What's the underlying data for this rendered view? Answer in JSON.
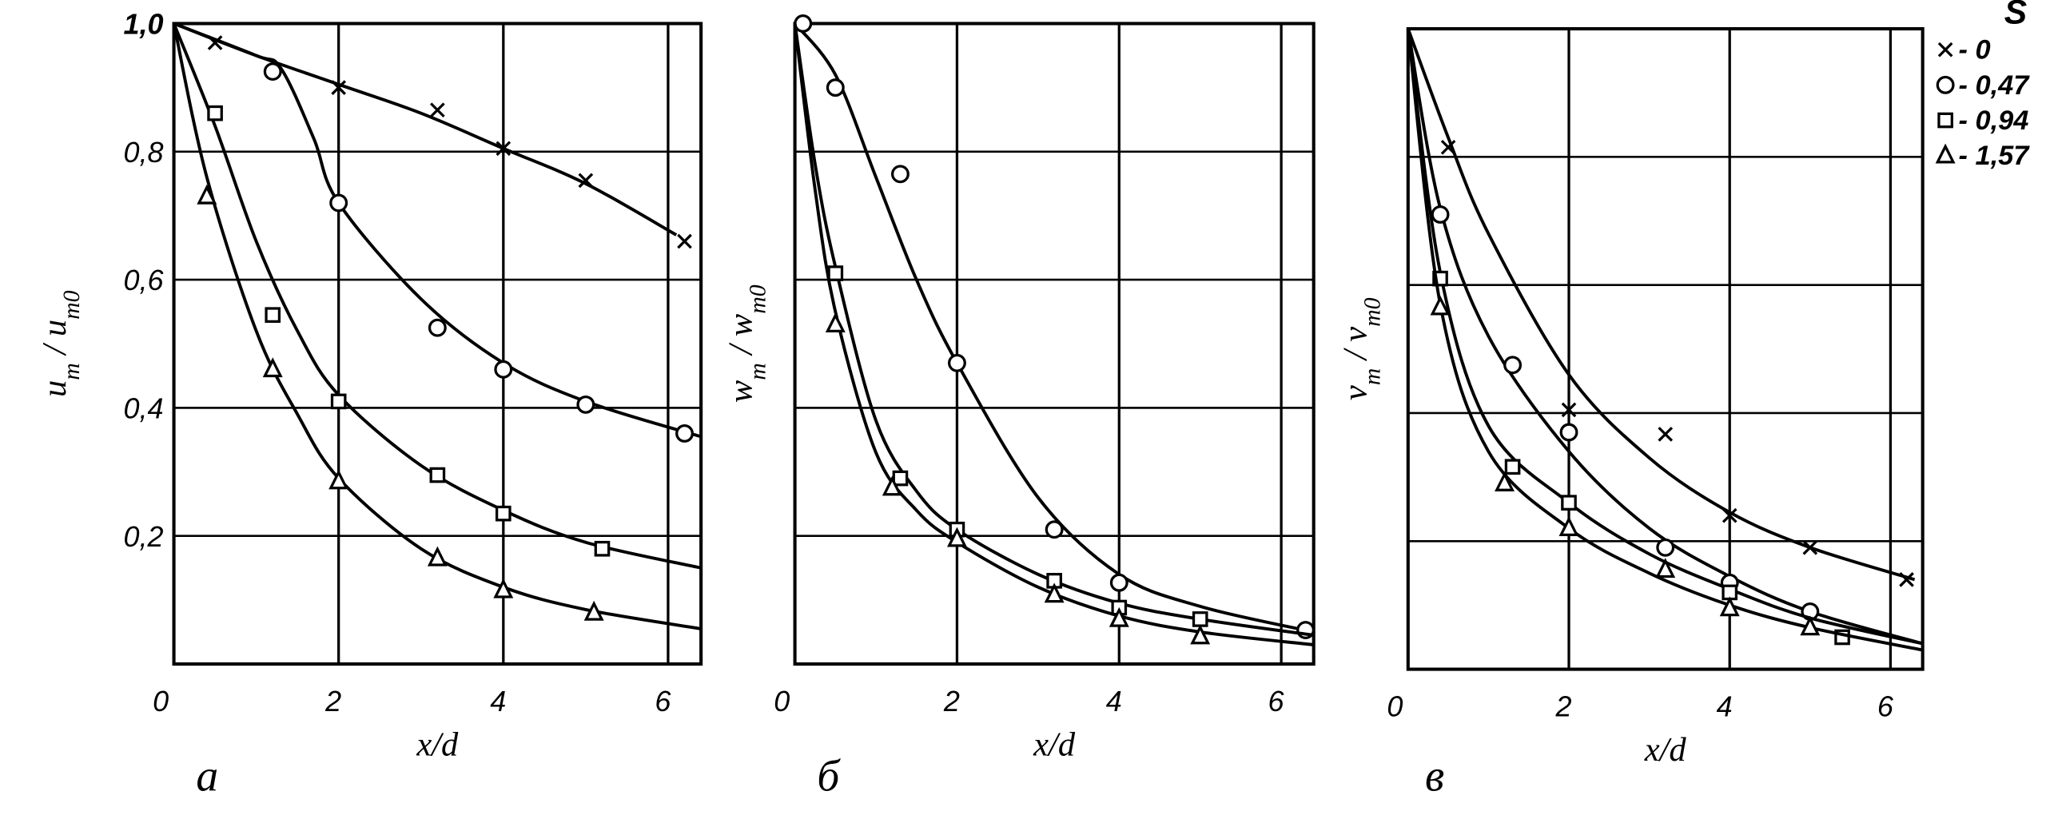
{
  "chart_data": [
    {
      "type": "line",
      "panel_label": "а",
      "xlabel": "x/d",
      "ylabel": "u_m / u_m0",
      "ylabel_main": "u",
      "ylabel_sub": "m",
      "ylabel_den": "u",
      "ylabel_den_sub": "m0",
      "xlim": [
        0,
        6.4
      ],
      "ylim": [
        0,
        1.0
      ],
      "x_ticks": [
        {
          "v": 0,
          "label": "0"
        },
        {
          "v": 2,
          "label": "2"
        },
        {
          "v": 4,
          "label": "4"
        },
        {
          "v": 6,
          "label": "6"
        }
      ],
      "y_ticks": [
        {
          "v": 1.0,
          "label": "1,0"
        },
        {
          "v": 0.8,
          "label": "0,8"
        },
        {
          "v": 0.6,
          "label": "0,6"
        },
        {
          "v": 0.4,
          "label": "0,4"
        },
        {
          "v": 0.2,
          "label": "0,2"
        }
      ],
      "grid": true,
      "series": [
        {
          "marker": "cross",
          "points": [
            [
              0.5,
              0.97
            ],
            [
              2,
              0.9
            ],
            [
              3.2,
              0.865
            ],
            [
              4,
              0.805
            ],
            [
              5,
              0.755
            ],
            [
              6.2,
              0.66
            ]
          ],
          "curve": [
            [
              0,
              1
            ],
            [
              1,
              0.95
            ],
            [
              2,
              0.905
            ],
            [
              3,
              0.86
            ],
            [
              4,
              0.805
            ],
            [
              5,
              0.75
            ],
            [
              6.1,
              0.67
            ]
          ]
        },
        {
          "marker": "circle",
          "points": [
            [
              1.2,
              0.925
            ],
            [
              2,
              0.72
            ],
            [
              3.2,
              0.525
            ],
            [
              4,
              0.46
            ],
            [
              5,
              0.405
            ],
            [
              6.2,
              0.36
            ]
          ],
          "curve": [
            [
              0,
              1
            ],
            [
              1,
              0.95
            ],
            [
              1.3,
              0.93
            ],
            [
              1.7,
              0.82
            ],
            [
              2,
              0.72
            ],
            [
              3,
              0.57
            ],
            [
              4,
              0.47
            ],
            [
              5,
              0.41
            ],
            [
              6.4,
              0.355
            ]
          ]
        },
        {
          "marker": "square",
          "points": [
            [
              0.5,
              0.86
            ],
            [
              1.2,
              0.545
            ],
            [
              2,
              0.41
            ],
            [
              3.2,
              0.295
            ],
            [
              4,
              0.235
            ],
            [
              5.2,
              0.18
            ]
          ],
          "curve": [
            [
              0,
              1
            ],
            [
              0.5,
              0.84
            ],
            [
              1,
              0.66
            ],
            [
              1.5,
              0.52
            ],
            [
              2,
              0.42
            ],
            [
              3,
              0.31
            ],
            [
              4,
              0.24
            ],
            [
              5,
              0.19
            ],
            [
              6.4,
              0.15
            ]
          ]
        },
        {
          "marker": "triangle",
          "points": [
            [
              0.4,
              0.73
            ],
            [
              1.2,
              0.46
            ],
            [
              2,
              0.285
            ],
            [
              3.2,
              0.165
            ],
            [
              4,
              0.115
            ],
            [
              5.1,
              0.08
            ]
          ],
          "curve": [
            [
              0,
              1
            ],
            [
              0.4,
              0.76
            ],
            [
              1,
              0.52
            ],
            [
              1.5,
              0.39
            ],
            [
              2,
              0.29
            ],
            [
              3,
              0.18
            ],
            [
              4,
              0.12
            ],
            [
              5,
              0.085
            ],
            [
              6.4,
              0.055
            ]
          ]
        }
      ]
    },
    {
      "type": "line",
      "panel_label": "б",
      "xlabel": "x/d",
      "ylabel": "w_m / w_m0",
      "ylabel_main": "w",
      "ylabel_sub": "m",
      "ylabel_den": "w",
      "ylabel_den_sub": "m0",
      "xlim": [
        0,
        6.4
      ],
      "ylim": [
        0,
        1.0
      ],
      "x_ticks": [
        {
          "v": 0,
          "label": "0"
        },
        {
          "v": 2,
          "label": "2"
        },
        {
          "v": 4,
          "label": "4"
        },
        {
          "v": 6,
          "label": "6"
        }
      ],
      "y_ticks": [],
      "grid": true,
      "series": [
        {
          "marker": "circle",
          "points": [
            [
              0.1,
              1.0
            ],
            [
              0.5,
              0.9
            ],
            [
              1.3,
              0.765
            ],
            [
              2,
              0.47
            ],
            [
              3.2,
              0.21
            ],
            [
              4,
              0.127
            ],
            [
              6.3,
              0.053
            ]
          ],
          "curve": [
            [
              0,
              1
            ],
            [
              0.5,
              0.92
            ],
            [
              1,
              0.76
            ],
            [
              1.5,
              0.6
            ],
            [
              2,
              0.47
            ],
            [
              3,
              0.26
            ],
            [
              4,
              0.14
            ],
            [
              5,
              0.09
            ],
            [
              6.4,
              0.05
            ]
          ]
        },
        {
          "marker": "square",
          "points": [
            [
              0.5,
              0.61
            ],
            [
              1.3,
              0.29
            ],
            [
              2,
              0.21
            ],
            [
              3.2,
              0.13
            ],
            [
              4,
              0.088
            ],
            [
              5,
              0.07
            ]
          ],
          "curve": [
            [
              0,
              1
            ],
            [
              0.25,
              0.78
            ],
            [
              0.5,
              0.62
            ],
            [
              1,
              0.38
            ],
            [
              1.5,
              0.27
            ],
            [
              2,
              0.21
            ],
            [
              3,
              0.14
            ],
            [
              4,
              0.095
            ],
            [
              5,
              0.07
            ],
            [
              6.4,
              0.045
            ]
          ]
        },
        {
          "marker": "triangle",
          "points": [
            [
              0.5,
              0.53
            ],
            [
              1.2,
              0.275
            ],
            [
              2,
              0.195
            ],
            [
              3.2,
              0.108
            ],
            [
              4,
              0.07
            ],
            [
              5,
              0.043
            ]
          ],
          "curve": [
            [
              0,
              1
            ],
            [
              0.25,
              0.74
            ],
            [
              0.5,
              0.55
            ],
            [
              1,
              0.33
            ],
            [
              1.5,
              0.24
            ],
            [
              2,
              0.19
            ],
            [
              3,
              0.12
            ],
            [
              4,
              0.075
            ],
            [
              5,
              0.05
            ],
            [
              6.4,
              0.03
            ]
          ]
        }
      ]
    },
    {
      "type": "line",
      "panel_label": "в",
      "xlabel": "x/d",
      "ylabel": "v_m / v_m0",
      "ylabel_main": "v",
      "ylabel_sub": "m",
      "ylabel_den": "v",
      "ylabel_den_sub": "m0",
      "xlim": [
        0,
        6.4
      ],
      "ylim": [
        0,
        1.0
      ],
      "x_ticks": [
        {
          "v": 0,
          "label": "0"
        },
        {
          "v": 2,
          "label": "2"
        },
        {
          "v": 4,
          "label": "4"
        },
        {
          "v": 6,
          "label": "6"
        }
      ],
      "y_ticks": [],
      "grid": true,
      "series": [
        {
          "marker": "cross",
          "points": [
            [
              0.5,
              0.815
            ],
            [
              2,
              0.405
            ],
            [
              3.2,
              0.367
            ],
            [
              4,
              0.24
            ],
            [
              5,
              0.19
            ],
            [
              6.2,
              0.14
            ]
          ],
          "curve": [
            [
              0,
              1
            ],
            [
              0.5,
              0.83
            ],
            [
              1,
              0.68
            ],
            [
              2,
              0.46
            ],
            [
              3,
              0.33
            ],
            [
              4,
              0.245
            ],
            [
              5,
              0.19
            ],
            [
              6.3,
              0.14
            ]
          ]
        },
        {
          "marker": "circle",
          "points": [
            [
              0.4,
              0.71
            ],
            [
              1.3,
              0.475
            ],
            [
              2,
              0.37
            ],
            [
              3.2,
              0.19
            ],
            [
              4,
              0.135
            ],
            [
              5,
              0.09
            ]
          ],
          "curve": [
            [
              0,
              1
            ],
            [
              0.4,
              0.72
            ],
            [
              1,
              0.52
            ],
            [
              2,
              0.34
            ],
            [
              3,
              0.22
            ],
            [
              4,
              0.145
            ],
            [
              5,
              0.09
            ],
            [
              6.4,
              0.04
            ]
          ]
        },
        {
          "marker": "square",
          "points": [
            [
              0.4,
              0.61
            ],
            [
              1.3,
              0.316
            ],
            [
              2,
              0.26
            ],
            [
              4,
              0.12
            ],
            [
              5.4,
              0.05
            ]
          ],
          "curve": [
            [
              0,
              1
            ],
            [
              0.4,
              0.62
            ],
            [
              1,
              0.38
            ],
            [
              2,
              0.26
            ],
            [
              3,
              0.18
            ],
            [
              4,
              0.125
            ],
            [
              5,
              0.08
            ],
            [
              6.4,
              0.04
            ]
          ]
        },
        {
          "marker": "triangle",
          "points": [
            [
              0.4,
              0.565
            ],
            [
              1.2,
              0.29
            ],
            [
              2,
              0.22
            ],
            [
              3.2,
              0.155
            ],
            [
              4,
              0.095
            ],
            [
              5,
              0.065
            ]
          ],
          "curve": [
            [
              0,
              1
            ],
            [
              0.4,
              0.57
            ],
            [
              1,
              0.34
            ],
            [
              2,
              0.22
            ],
            [
              3,
              0.15
            ],
            [
              4,
              0.1
            ],
            [
              5,
              0.065
            ],
            [
              6.4,
              0.03
            ]
          ]
        }
      ]
    }
  ],
  "legend": {
    "title": "S",
    "placement": "right",
    "entries": [
      {
        "marker": "cross",
        "label": "- 0"
      },
      {
        "marker": "circle",
        "label": "- 0,47"
      },
      {
        "marker": "square",
        "label": "- 0,94"
      },
      {
        "marker": "triangle",
        "label": "- 1,57"
      }
    ]
  },
  "colors": {
    "ink": "#000000",
    "background": "#ffffff"
  }
}
